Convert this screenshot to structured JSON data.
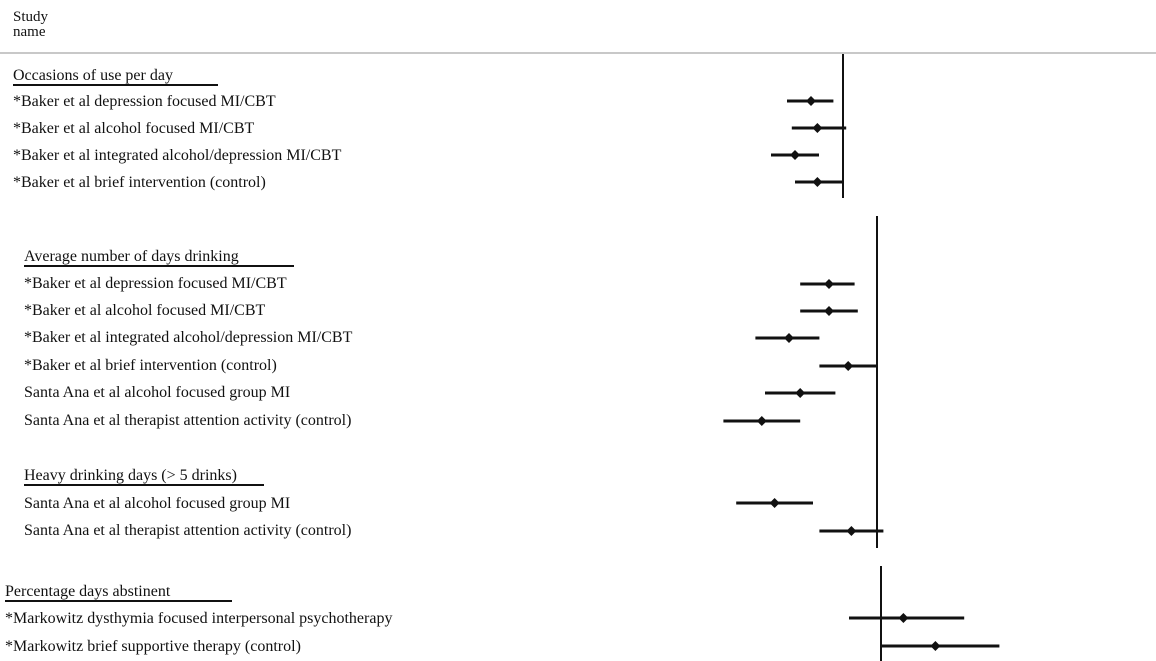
{
  "header": {
    "study_col_line1": "Study",
    "study_col_line2": "name"
  },
  "chart_data": {
    "type": "forest",
    "x_scale": "axis not labeled; values in relative units (0 = study vertical line)",
    "panels": [
      {
        "title": "Occasions of use per day",
        "studies": [
          {
            "name": "*Baker et al depression focused MI/CBT",
            "estimate": -1.0,
            "lower": -1.75,
            "upper": -0.3
          },
          {
            "name": "*Baker et al alcohol focused MI/CBT",
            "estimate": -0.8,
            "lower": -1.6,
            "upper": 0.1
          },
          {
            "name": "*Baker et al integrated alcohol/depression MI/CBT",
            "estimate": -1.5,
            "lower": -2.25,
            "upper": -0.75
          },
          {
            "name": "*Baker et al brief intervention (control)",
            "estimate": -0.8,
            "lower": -1.5,
            "upper": 0.0
          }
        ]
      },
      {
        "title": "Average number of days drinking",
        "studies": [
          {
            "name": "*Baker et al depression focused MI/CBT",
            "estimate": -1.5,
            "lower": -2.4,
            "upper": -0.7
          },
          {
            "name": "*Baker et al alcohol focused MI/CBT",
            "estimate": -1.5,
            "lower": -2.4,
            "upper": -0.6
          },
          {
            "name": "*Baker et al integrated alcohol/depression MI/CBT",
            "estimate": -2.75,
            "lower": -3.8,
            "upper": -1.8
          },
          {
            "name": "*Baker et al brief intervention (control)",
            "estimate": -0.9,
            "lower": -1.8,
            "upper": 0.0
          },
          {
            "name": "Santa Ana et al alcohol focused group MI",
            "estimate": -2.4,
            "lower": -3.5,
            "upper": -1.3
          },
          {
            "name": "Santa Ana et al therapist attention activity (control)",
            "estimate": -3.6,
            "lower": -4.8,
            "upper": -2.4
          }
        ]
      },
      {
        "title": "Heavy drinking days (> 5 drinks)",
        "studies": [
          {
            "name": "Santa Ana et al alcohol focused group MI",
            "estimate": -3.2,
            "lower": -4.4,
            "upper": -2.0
          },
          {
            "name": "Santa Ana et al therapist attention activity (control)",
            "estimate": -0.8,
            "lower": -1.8,
            "upper": 0.2
          }
        ]
      },
      {
        "title": "Percentage days abstinent",
        "studies": [
          {
            "name": "*Markowitz dysthymia focused interpersonal psychotherapy",
            "estimate": 0.7,
            "lower": -1.0,
            "upper": 2.6
          },
          {
            "name": "*Markowitz brief supportive therapy (control)",
            "estimate": 1.7,
            "lower": 0.0,
            "upper": 3.7
          }
        ]
      }
    ]
  }
}
